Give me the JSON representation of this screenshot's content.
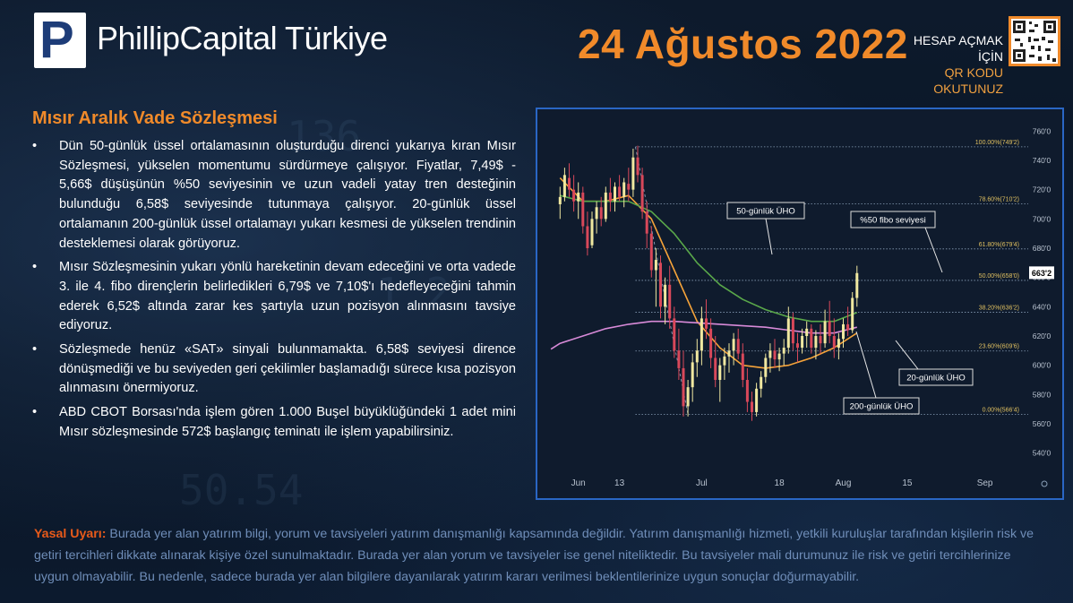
{
  "header": {
    "logo_letter": "P",
    "brand": "PhillipCapital Türkiye",
    "date": "24 Ağustos 2022",
    "qr_line1": "HESAP AÇMAK İÇİN",
    "qr_line2": "QR KODU OKUTUNUZ"
  },
  "article": {
    "title": "Mısır Aralık Vade Sözleşmesi",
    "bullets": [
      "Dün 50-günlük üssel ortalamasının oluşturduğu direnci yukarıya kıran Mısır Sözleşmesi, yükselen momentumu sürdürmeye çalışıyor. Fiyatlar, 7,49$ - 5,66$ düşüşünün %50 seviyesinin ve uzun vadeli yatay tren desteğinin bulunduğu 6,58$ seviyesinde tutunmaya çalışıyor.  20-günlük üssel ortalamanın 200-günlük üssel ortalamayı yukarı kesmesi de yükselen trendinin desteklemesi olarak görüyoruz.",
      "Mısır Sözleşmesinin yukarı yönlü hareketinin devam edeceğini ve orta vadede 3. ile 4. fibo dirençlerin belirledikleri 6,79$ ve 7,10$'ı hedefleyeceğini tahmin ederek 6,52$ altında zarar kes şartıyla uzun pozisyon alınmasını tavsiye ediyoruz.",
      "Sözleşmede henüz «SAT» sinyali bulunmamakta.  6,58$ seviyesi dirence dönüşmediği ve bu seviyeden geri çekilimler başlamadığı sürece kısa pozisyon alınmasını önermiyoruz.",
      "ABD CBOT Borsası'nda işlem gören 1.000 Buşel büyüklüğündeki 1 adet mini Mısır sözleşmesinde 572$ başlangıç teminatı ile işlem yapabilirsiniz."
    ]
  },
  "legal": {
    "label": "Yasal Uyarı:",
    "text": " Burada yer alan yatırım bilgi, yorum ve tavsiyeleri yatırım danışmanlığı kapsamında değildir. Yatırım danışmanlığı hizmeti, yetkili kuruluşlar tarafından kişilerin risk ve getiri tercihleri dikkate alınarak kişiye özel sunulmaktadır. Burada yer alan yorum ve tavsiyeler ise genel niteliktedir. Bu tavsiyeler mali durumunuz ile risk ve getiri tercihlerinize uygun olmayabilir. Bu nedenle, sadece burada yer alan bilgilere dayanılarak yatırım kararı verilmesi beklentilerinize uygun sonuçlar doğurmayabilir."
  },
  "colors": {
    "accent": "#f08a2a",
    "chart_border": "#2a66c4",
    "ema20": "#f5a33a",
    "ema50": "#5aa84a",
    "ema200": "#d88ad8",
    "up_candle": "#f0e8a0",
    "down_candle": "#d8485a",
    "legal_label": "#e85a1a",
    "legal_text": "#6f8db8"
  },
  "chart_data": {
    "type": "line",
    "ylim": [
      530,
      770
    ],
    "y_ticks": [
      "760'0",
      "740'0",
      "720'0",
      "700'0",
      "680'0",
      "660'0",
      "640'0",
      "620'0",
      "600'0",
      "580'0",
      "560'0",
      "540'0"
    ],
    "y_tick_values": [
      760,
      740,
      720,
      700,
      680,
      660,
      640,
      620,
      600,
      580,
      560,
      540
    ],
    "x_ticks": [
      {
        "label": "Jun",
        "day": 4
      },
      {
        "label": "13",
        "day": 13
      },
      {
        "label": "Jul",
        "day": 31
      },
      {
        "label": "18",
        "day": 48
      },
      {
        "label": "Aug",
        "day": 62
      },
      {
        "label": "15",
        "day": 76
      },
      {
        "label": "Sep",
        "day": 93
      }
    ],
    "xlim": [
      -3,
      97
    ],
    "fib_levels": [
      {
        "label": "100.00%(749'2)",
        "value": 749.25
      },
      {
        "label": "78.60%(710'2)",
        "value": 710.25
      },
      {
        "label": "61.80%(679'4)",
        "value": 679.5
      },
      {
        "label": "50.00%(658'0)",
        "value": 658.0
      },
      {
        "label": "38.20%(636'2)",
        "value": 636.25
      },
      {
        "label": "23.60%(609'6)",
        "value": 609.75
      },
      {
        "label": "0.00%(566'4)",
        "value": 566.5
      }
    ],
    "last_price_label": "663'2",
    "last_price": 663.25,
    "annotations": [
      {
        "text": "50-günlük ÜHO"
      },
      {
        "text": "%50 fibo seviyesi"
      },
      {
        "text": "20-günlük ÜHO"
      },
      {
        "text": "200-günlük ÜHO"
      }
    ],
    "candles": [
      [
        0,
        710,
        722,
        700,
        715
      ],
      [
        1,
        715,
        735,
        712,
        730
      ],
      [
        2,
        728,
        738,
        715,
        720
      ],
      [
        3,
        720,
        730,
        705,
        712
      ],
      [
        4,
        712,
        725,
        700,
        718
      ],
      [
        5,
        718,
        722,
        690,
        695
      ],
      [
        6,
        695,
        705,
        675,
        680
      ],
      [
        7,
        682,
        705,
        680,
        700
      ],
      [
        8,
        700,
        712,
        690,
        708
      ],
      [
        9,
        708,
        715,
        695,
        700
      ],
      [
        10,
        700,
        722,
        698,
        718
      ],
      [
        11,
        718,
        728,
        705,
        712
      ],
      [
        12,
        712,
        725,
        705,
        722
      ],
      [
        13,
        722,
        730,
        712,
        715
      ],
      [
        14,
        715,
        728,
        708,
        725
      ],
      [
        15,
        724,
        735,
        712,
        720
      ],
      [
        16,
        720,
        748,
        715,
        742
      ],
      [
        17,
        742,
        750,
        725,
        730
      ],
      [
        18,
        730,
        735,
        700,
        705
      ],
      [
        19,
        705,
        712,
        680,
        690
      ],
      [
        20,
        690,
        695,
        660,
        665
      ],
      [
        21,
        665,
        680,
        640,
        672
      ],
      [
        22,
        670,
        675,
        632,
        640
      ],
      [
        23,
        640,
        660,
        628,
        655
      ],
      [
        24,
        655,
        668,
        625,
        632
      ],
      [
        25,
        632,
        640,
        605,
        610
      ],
      [
        26,
        610,
        625,
        590,
        598
      ],
      [
        27,
        598,
        610,
        565,
        572
      ],
      [
        28,
        572,
        590,
        565,
        585
      ],
      [
        29,
        585,
        608,
        575,
        602
      ],
      [
        30,
        602,
        618,
        592,
        610
      ],
      [
        31,
        610,
        640,
        600,
        632
      ],
      [
        32,
        632,
        645,
        618,
        625
      ],
      [
        33,
        625,
        632,
        598,
        605
      ],
      [
        34,
        605,
        620,
        585,
        590
      ],
      [
        35,
        590,
        605,
        575,
        600
      ],
      [
        36,
        600,
        612,
        590,
        606
      ],
      [
        37,
        606,
        615,
        595,
        610
      ],
      [
        38,
        610,
        622,
        600,
        618
      ],
      [
        39,
        618,
        625,
        604,
        608
      ],
      [
        40,
        608,
        615,
        585,
        590
      ],
      [
        41,
        590,
        598,
        568,
        575
      ],
      [
        42,
        575,
        582,
        562,
        568
      ],
      [
        43,
        568,
        588,
        565,
        584
      ],
      [
        44,
        584,
        596,
        578,
        592
      ],
      [
        45,
        592,
        608,
        588,
        605
      ],
      [
        46,
        605,
        615,
        595,
        610
      ],
      [
        47,
        610,
        618,
        598,
        604
      ],
      [
        48,
        604,
        612,
        596,
        608
      ],
      [
        49,
        608,
        618,
        600,
        612
      ],
      [
        50,
        612,
        640,
        608,
        632
      ],
      [
        51,
        632,
        636,
        610,
        615
      ],
      [
        52,
        615,
        622,
        602,
        612
      ],
      [
        53,
        612,
        625,
        608,
        620
      ],
      [
        54,
        620,
        630,
        612,
        625
      ],
      [
        55,
        625,
        628,
        608,
        612
      ],
      [
        56,
        612,
        624,
        604,
        620
      ],
      [
        57,
        620,
        628,
        608,
        615
      ],
      [
        58,
        615,
        638,
        612,
        630
      ],
      [
        59,
        630,
        644,
        615,
        620
      ],
      [
        60,
        620,
        632,
        605,
        612
      ],
      [
        61,
        612,
        622,
        604,
        618
      ],
      [
        62,
        618,
        632,
        612,
        628
      ],
      [
        63,
        628,
        640,
        620,
        624
      ],
      [
        64,
        624,
        650,
        622,
        646
      ],
      [
        65,
        646,
        668,
        640,
        663
      ]
    ],
    "ema_days": [
      0,
      5,
      10,
      15,
      20,
      25,
      30,
      35,
      40,
      45,
      50,
      55,
      60,
      65
    ],
    "series": [
      {
        "name": "20-günlük ÜHO",
        "values": [
          728,
          712,
          712,
          716,
          700,
          665,
          630,
          612,
          600,
          598,
          600,
          605,
          612,
          622
        ]
      },
      {
        "name": "50-günlük ÜHO",
        "values": [
          716,
          712,
          712,
          712,
          705,
          690,
          670,
          655,
          645,
          638,
          633,
          630,
          630,
          636
        ]
      },
      {
        "name": "200-günlük ÜHO",
        "values": [
          615,
          620,
          625,
          628,
          630,
          630,
          629,
          628,
          627,
          626,
          624,
          622,
          622,
          626
        ]
      }
    ]
  }
}
